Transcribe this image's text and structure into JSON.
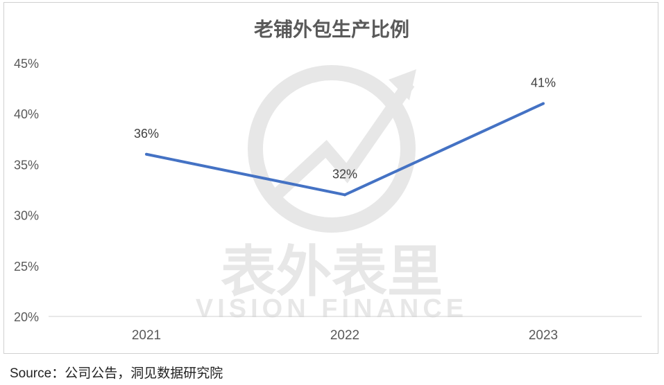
{
  "chart_data": {
    "type": "line",
    "title": "老铺外包生产比例",
    "categories": [
      "2021",
      "2022",
      "2023"
    ],
    "series": [
      {
        "values": [
          36,
          32,
          41
        ],
        "color": "#4472C4"
      }
    ],
    "data_labels": [
      "36%",
      "32%",
      "41%"
    ],
    "ylim": [
      20,
      45
    ],
    "yticks": [
      20,
      25,
      30,
      35,
      40,
      45
    ],
    "ytick_labels": [
      "20%",
      "25%",
      "30%",
      "35%",
      "40%",
      "45%"
    ],
    "grid": false,
    "legend": "none"
  },
  "watermark": {
    "cn": "表外表里",
    "en": "VISION FINANCE"
  },
  "source": "Source：公司公告，洞见数据研究院"
}
